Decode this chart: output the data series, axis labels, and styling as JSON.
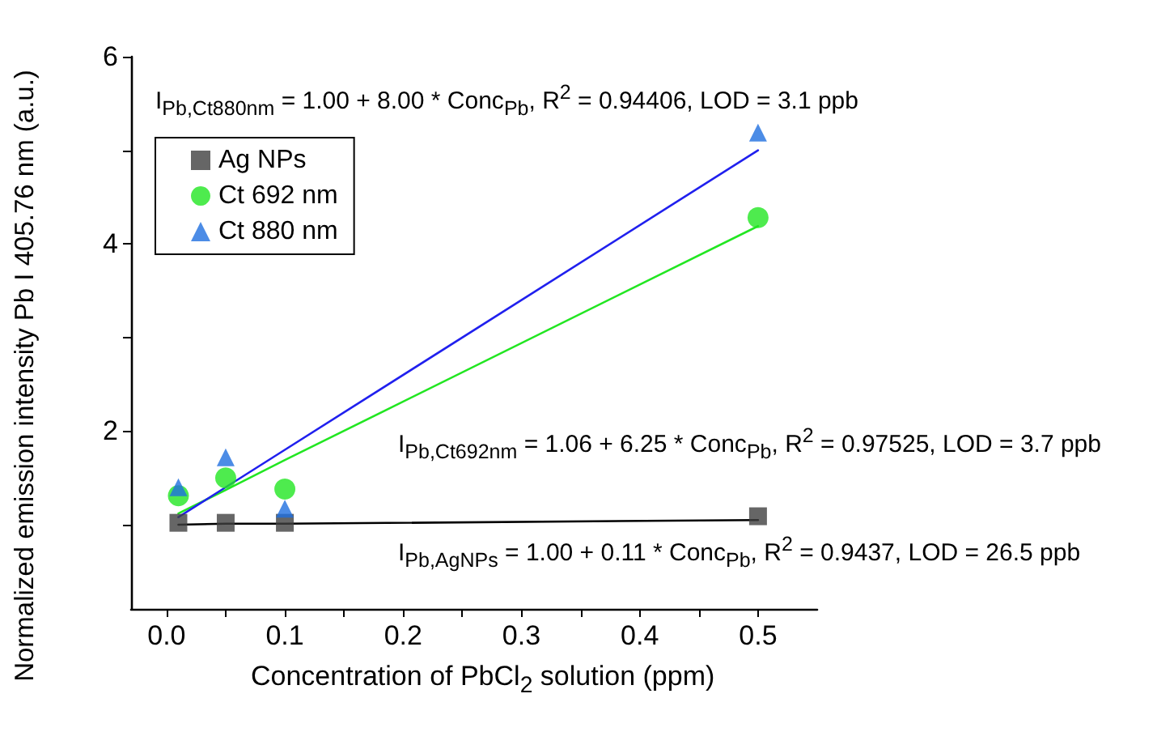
{
  "chart_data": {
    "type": "scatter",
    "xlabel": "Concentration of PbCl$_{2}$ solution (ppm)",
    "ylabel": "Normalized emission intensity Pb I 405.76 nm (a.u.)",
    "annotations": [
      "I$_{Pb,Ct880nm}$ = 1.00 + 8.00 * Conc$_{Pb}$, R$^{2}$ = 0.94406, LOD = 3.1 ppb",
      "I$_{Pb,Ct692nm}$ = 1.06 + 6.25 * Conc$_{Pb}$, R$^{2}$ = 0.97525, LOD = 3.7 ppb",
      "I$_{Pb,AgNPs}$ = 1.00 + 0.11 * Conc$_{Pb}$, R$^{2}$ = 0.9437, LOD = 26.5 ppb"
    ],
    "x": [
      0.01,
      0.05,
      0.1,
      0.5
    ],
    "series": [
      {
        "name": "Ag NPs",
        "color": "#404040",
        "marker": "square",
        "values": [
          1.02,
          1.02,
          1.02,
          1.09
        ]
      },
      {
        "name": "Ct 692 nm",
        "color": "#22e622",
        "marker": "circle",
        "values": [
          1.31,
          1.5,
          1.38,
          4.28
        ]
      },
      {
        "name": "Ct 880 nm",
        "color": "#1f6fe0",
        "marker": "triangle",
        "values": [
          1.4,
          1.72,
          1.17,
          5.19
        ]
      },
      {
        "type": "line",
        "color": "#000000",
        "marker": "none",
        "values": [
          1.0,
          1.01,
          1.01,
          1.05
        ]
      },
      {
        "type": "line",
        "color": "#22e622",
        "marker": "none",
        "values": [
          1.12,
          1.37,
          1.69,
          4.19
        ]
      },
      {
        "type": "line",
        "color": "#2020ee",
        "marker": "none",
        "values": [
          1.08,
          1.4,
          1.8,
          5.0
        ]
      }
    ],
    "xlim": [
      -0.03,
      0.55
    ],
    "xticks": [
      {
        "value": 0,
        "label": "0.0"
      },
      {
        "value": 0.05,
        "label": null
      },
      {
        "value": 0.1,
        "label": "0.1"
      },
      {
        "value": 0.15,
        "label": null
      },
      {
        "value": 0.2,
        "label": "0.2"
      },
      {
        "value": 0.25,
        "label": null
      },
      {
        "value": 0.3,
        "label": "0.3"
      },
      {
        "value": 0.35,
        "label": null
      },
      {
        "value": 0.4,
        "label": "0.4"
      },
      {
        "value": 0.45,
        "label": null
      },
      {
        "value": 0.5,
        "label": "0.5"
      }
    ],
    "ylim": [
      0.1,
      6
    ],
    "yticks": [
      {
        "value": 1,
        "label": null
      },
      2,
      {
        "value": 3,
        "label": null
      },
      4,
      {
        "value": 5,
        "label": null
      },
      6
    ],
    "grid": false,
    "legend": "top left"
  }
}
